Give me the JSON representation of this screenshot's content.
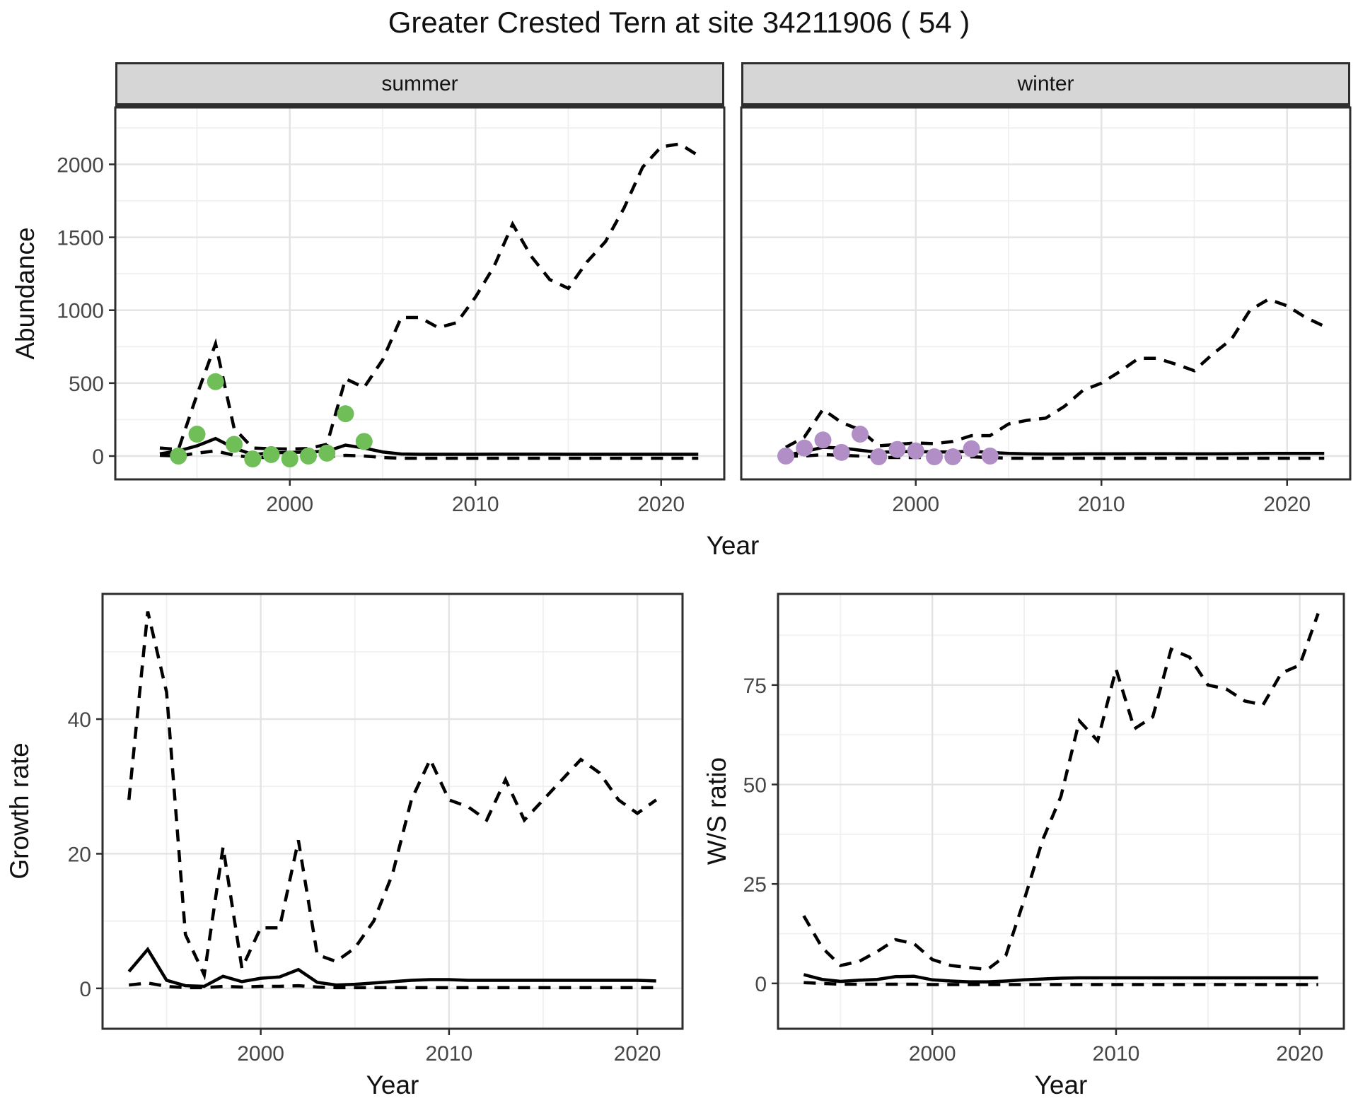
{
  "title": "Greater Crested Tern at site 34211906 ( 54 )",
  "colors": {
    "summer_points": "#6fbe58",
    "winter_points": "#b18fc6",
    "line": "#000000",
    "grid_major": "#e3e3e3",
    "grid_minor": "#f0f0f0",
    "panel_border": "#2e2e2e",
    "strip_bg": "#d6d6d6",
    "tick_text": "#474747",
    "panel_bg": "#ffffff"
  },
  "chart_data": [
    {
      "type": "line",
      "title": "Greater Crested Tern at site 34211906 ( 54 )",
      "xlabel": "Year",
      "ylabel": "Abundance",
      "xticks": [
        2000,
        2010,
        2020
      ],
      "xminor": [
        1995,
        2005,
        2015
      ],
      "yticks": [
        0,
        500,
        1000,
        1500,
        2000
      ],
      "yminor": [
        250,
        750,
        1250,
        1750,
        2250
      ],
      "xlim": [
        1990.6,
        2023.4
      ],
      "ylim": [
        -160,
        2390
      ],
      "grid": true,
      "legend": "none",
      "years": [
        1993,
        1994,
        1995,
        1996,
        1997,
        1998,
        1999,
        2000,
        2001,
        2002,
        2003,
        2004,
        2005,
        2006,
        2007,
        2008,
        2009,
        2010,
        2011,
        2012,
        2013,
        2014,
        2015,
        2016,
        2017,
        2018,
        2019,
        2020,
        2021,
        2022
      ],
      "facets": [
        {
          "label": "summer",
          "point_color": "#6fbe58",
          "upper_ci": [
            55,
            45,
            420,
            770,
            190,
            55,
            50,
            48,
            52,
            80,
            530,
            470,
            660,
            950,
            950,
            880,
            915,
            1090,
            1300,
            1590,
            1370,
            1210,
            1150,
            1330,
            1470,
            1700,
            1980,
            2120,
            2140,
            2060
          ],
          "mean": [
            15,
            35,
            70,
            120,
            55,
            10,
            22,
            25,
            28,
            33,
            75,
            55,
            28,
            14,
            12,
            12,
            12,
            12,
            13,
            13,
            13,
            13,
            12,
            12,
            12,
            12,
            12,
            12,
            12,
            12
          ],
          "lower_ci": [
            5,
            0,
            20,
            35,
            5,
            -10,
            -10,
            -10,
            -10,
            -5,
            5,
            0,
            -10,
            -15,
            -15,
            -15,
            -15,
            -15,
            -15,
            -15,
            -15,
            -15,
            -15,
            -15,
            -15,
            -15,
            -15,
            -15,
            -15,
            -15
          ],
          "obs_years": [
            1994,
            1995,
            1996,
            1997,
            1998,
            1999,
            2000,
            2001,
            2002,
            2003,
            2004
          ],
          "obs_values": [
            0,
            150,
            510,
            80,
            -20,
            10,
            -20,
            0,
            20,
            290,
            100
          ]
        },
        {
          "label": "winter",
          "point_color": "#b18fc6",
          "upper_ci": [
            60,
            130,
            320,
            230,
            180,
            70,
            80,
            90,
            85,
            100,
            140,
            140,
            220,
            245,
            260,
            340,
            450,
            500,
            580,
            670,
            670,
            630,
            585,
            700,
            800,
            1000,
            1075,
            1030,
            950,
            890
          ],
          "mean": [
            5,
            30,
            60,
            55,
            40,
            25,
            30,
            30,
            28,
            28,
            32,
            25,
            18,
            15,
            14,
            14,
            15,
            15,
            15,
            16,
            16,
            16,
            15,
            15,
            16,
            17,
            18,
            18,
            18,
            18
          ],
          "lower_ci": [
            0,
            0,
            10,
            5,
            0,
            -10,
            -10,
            -10,
            -10,
            -10,
            -5,
            -10,
            -15,
            -15,
            -15,
            -15,
            -15,
            -15,
            -15,
            -15,
            -15,
            -15,
            -15,
            -15,
            -15,
            -15,
            -15,
            -15,
            -15,
            -15
          ],
          "obs_years": [
            1993,
            1994,
            1995,
            1996,
            1997,
            1998,
            1999,
            2000,
            2001,
            2002,
            2003,
            2004
          ],
          "obs_values": [
            0,
            55,
            110,
            25,
            150,
            -5,
            45,
            35,
            -5,
            -5,
            50,
            0
          ]
        }
      ]
    },
    {
      "type": "line",
      "xlabel": "Year",
      "ylabel": "Growth rate",
      "xticks": [
        2000,
        2010,
        2020
      ],
      "xminor": [
        1995,
        2005,
        2015
      ],
      "yticks": [
        0,
        20,
        40
      ],
      "yminor": [
        10,
        30,
        50
      ],
      "xlim": [
        1991.6,
        2022.4
      ],
      "ylim": [
        -6,
        58.6
      ],
      "grid": true,
      "legend": "none",
      "years": [
        1993,
        1994,
        1995,
        1996,
        1997,
        1998,
        1999,
        2000,
        2001,
        2002,
        2003,
        2004,
        2005,
        2006,
        2007,
        2008,
        2009,
        2010,
        2011,
        2012,
        2013,
        2014,
        2015,
        2016,
        2017,
        2018,
        2019,
        2020,
        2021
      ],
      "upper_ci": [
        28,
        56,
        44,
        8,
        2,
        21,
        3,
        9,
        9,
        22,
        5,
        4,
        6,
        10,
        17,
        28,
        34,
        28,
        27,
        25,
        31,
        25,
        28,
        31,
        34,
        32,
        28,
        26,
        28
      ],
      "mean": [
        2.5,
        5.8,
        1.2,
        0.4,
        0.3,
        1.8,
        1,
        1.5,
        1.7,
        2.8,
        0.9,
        0.5,
        0.6,
        0.8,
        1,
        1.2,
        1.3,
        1.3,
        1.2,
        1.2,
        1.2,
        1.2,
        1.2,
        1.2,
        1.2,
        1.2,
        1.2,
        1.2,
        1.1
      ],
      "lower_ci": [
        0.5,
        0.8,
        0.3,
        0.1,
        0.1,
        0.3,
        0.2,
        0.3,
        0.3,
        0.4,
        0.2,
        0.1,
        0.1,
        0.1,
        0.1,
        0.1,
        0.1,
        0.1,
        0.1,
        0.1,
        0.1,
        0.1,
        0.1,
        0.1,
        0.1,
        0.1,
        0.1,
        0.1,
        0.1
      ]
    },
    {
      "type": "line",
      "xlabel": "Year",
      "ylabel": "W/S ratio",
      "xticks": [
        2000,
        2010,
        2020
      ],
      "xminor": [
        1995,
        2005,
        2015
      ],
      "yticks": [
        0,
        25,
        50,
        75
      ],
      "yminor": [
        12.5,
        37.5,
        62.5,
        87.5
      ],
      "xlim": [
        1991.6,
        2022.4
      ],
      "ylim": [
        -11.4,
        97.9
      ],
      "grid": true,
      "legend": "none",
      "years": [
        1993,
        1994,
        1995,
        1996,
        1997,
        1998,
        1999,
        2000,
        2001,
        2002,
        2003,
        2004,
        2005,
        2006,
        2007,
        2008,
        2009,
        2010,
        2011,
        2012,
        2013,
        2014,
        2015,
        2016,
        2017,
        2018,
        2019,
        2020,
        2021
      ],
      "upper_ci": [
        17,
        9,
        4.5,
        5.5,
        8,
        11,
        10,
        6,
        4.5,
        4,
        3.5,
        7,
        21,
        36,
        47,
        66,
        61,
        79,
        64,
        67,
        84,
        82,
        75,
        74,
        71,
        70,
        78,
        80,
        93
      ],
      "mean": [
        2.2,
        1,
        0.5,
        0.8,
        1,
        1.7,
        1.8,
        0.9,
        0.6,
        0.4,
        0.4,
        0.6,
        0.9,
        1.1,
        1.3,
        1.4,
        1.4,
        1.4,
        1.4,
        1.4,
        1.4,
        1.4,
        1.4,
        1.4,
        1.4,
        1.4,
        1.4,
        1.4,
        1.4
      ],
      "lower_ci": [
        0.2,
        0,
        -0.2,
        -0.2,
        -0.2,
        -0.2,
        -0.2,
        -0.3,
        -0.3,
        -0.3,
        -0.3,
        -0.3,
        -0.3,
        -0.3,
        -0.3,
        -0.3,
        -0.3,
        -0.3,
        -0.3,
        -0.3,
        -0.3,
        -0.3,
        -0.3,
        -0.3,
        -0.3,
        -0.3,
        -0.3,
        -0.3,
        -0.3
      ]
    }
  ]
}
